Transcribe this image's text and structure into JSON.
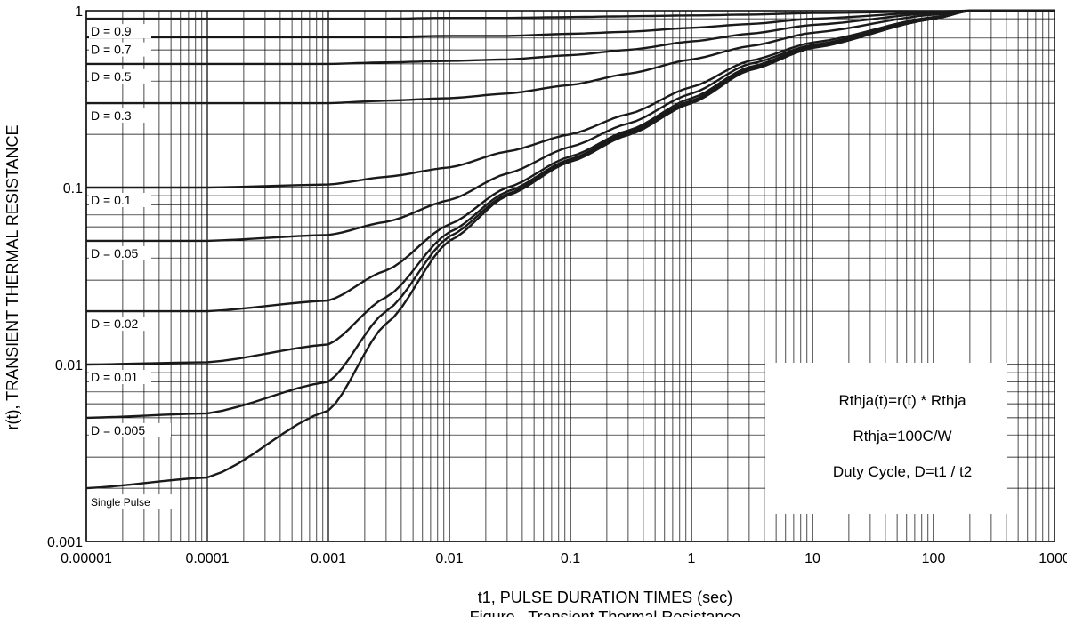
{
  "chart_data": {
    "type": "line",
    "title": "",
    "caption_partial": "Figure . Transient Thermal Resistance",
    "xlabel": "t1, PULSE DURATION TIMES (sec)",
    "ylabel": "r(t), TRANSIENT THERMAL RESISTANCE",
    "xscale": "log",
    "yscale": "log",
    "xlim": [
      1e-05,
      1000
    ],
    "ylim": [
      0.001,
      1
    ],
    "grid": true,
    "x_ticks": [
      "0.00001",
      "0.0001",
      "0.001",
      "0.01",
      "0.1",
      "1",
      "10",
      "100",
      "1000"
    ],
    "y_ticks": [
      "0.001",
      "0.01",
      "0.1",
      "1"
    ],
    "x": [
      1e-05,
      0.0001,
      0.001,
      0.003,
      0.01,
      0.03,
      0.1,
      0.3,
      1,
      3,
      10,
      100,
      200,
      1000
    ],
    "series": [
      {
        "name": "D = 0.9",
        "values": [
          0.9,
          0.9,
          0.9,
          0.9,
          0.91,
          0.91,
          0.92,
          0.93,
          0.94,
          0.95,
          0.97,
          0.99,
          1.0,
          1.0
        ]
      },
      {
        "name": "D = 0.7",
        "values": [
          0.71,
          0.71,
          0.71,
          0.71,
          0.72,
          0.72,
          0.74,
          0.76,
          0.8,
          0.84,
          0.9,
          0.98,
          1.0,
          1.0
        ]
      },
      {
        "name": "D = 0.5",
        "values": [
          0.5,
          0.5,
          0.5,
          0.51,
          0.52,
          0.53,
          0.56,
          0.6,
          0.67,
          0.74,
          0.83,
          0.97,
          1.0,
          1.0
        ]
      },
      {
        "name": "D = 0.3",
        "values": [
          0.3,
          0.3,
          0.3,
          0.31,
          0.32,
          0.34,
          0.38,
          0.44,
          0.53,
          0.63,
          0.75,
          0.95,
          1.0,
          1.0
        ]
      },
      {
        "name": "D = 0.1",
        "values": [
          0.1,
          0.1,
          0.104,
          0.115,
          0.13,
          0.16,
          0.2,
          0.26,
          0.37,
          0.52,
          0.66,
          0.92,
          1.0,
          1.0
        ]
      },
      {
        "name": "D = 0.05",
        "values": [
          0.05,
          0.05,
          0.054,
          0.064,
          0.085,
          0.12,
          0.17,
          0.23,
          0.34,
          0.5,
          0.64,
          0.91,
          1.0,
          1.0
        ]
      },
      {
        "name": "D = 0.02",
        "values": [
          0.02,
          0.02,
          0.023,
          0.034,
          0.062,
          0.1,
          0.15,
          0.21,
          0.32,
          0.48,
          0.63,
          0.9,
          1.0,
          1.0
        ]
      },
      {
        "name": "D = 0.01",
        "values": [
          0.01,
          0.0103,
          0.013,
          0.024,
          0.056,
          0.095,
          0.145,
          0.205,
          0.31,
          0.47,
          0.62,
          0.9,
          1.0,
          1.0
        ]
      },
      {
        "name": "D = 0.005",
        "values": [
          0.005,
          0.0053,
          0.008,
          0.02,
          0.053,
          0.092,
          0.142,
          0.2,
          0.305,
          0.465,
          0.62,
          0.9,
          1.0,
          1.0
        ]
      },
      {
        "name": "Single Pulse",
        "values": [
          0.002,
          0.0023,
          0.0055,
          0.017,
          0.05,
          0.09,
          0.14,
          0.198,
          0.3,
          0.46,
          0.615,
          0.9,
          1.0,
          1.0
        ]
      }
    ],
    "series_label_positions": [
      "left-inside",
      "left-inside",
      "left-inside",
      "left-inside",
      "left-inside",
      "left-inside",
      "left-inside",
      "left-inside",
      "left-inside",
      "left-inside"
    ],
    "annotations": [
      "Rthja(t)=r(t) * Rthja",
      "Rthja=100C/W",
      "Duty Cycle, D=t1 /  t2"
    ],
    "annotation_placement": "bottom-right"
  }
}
